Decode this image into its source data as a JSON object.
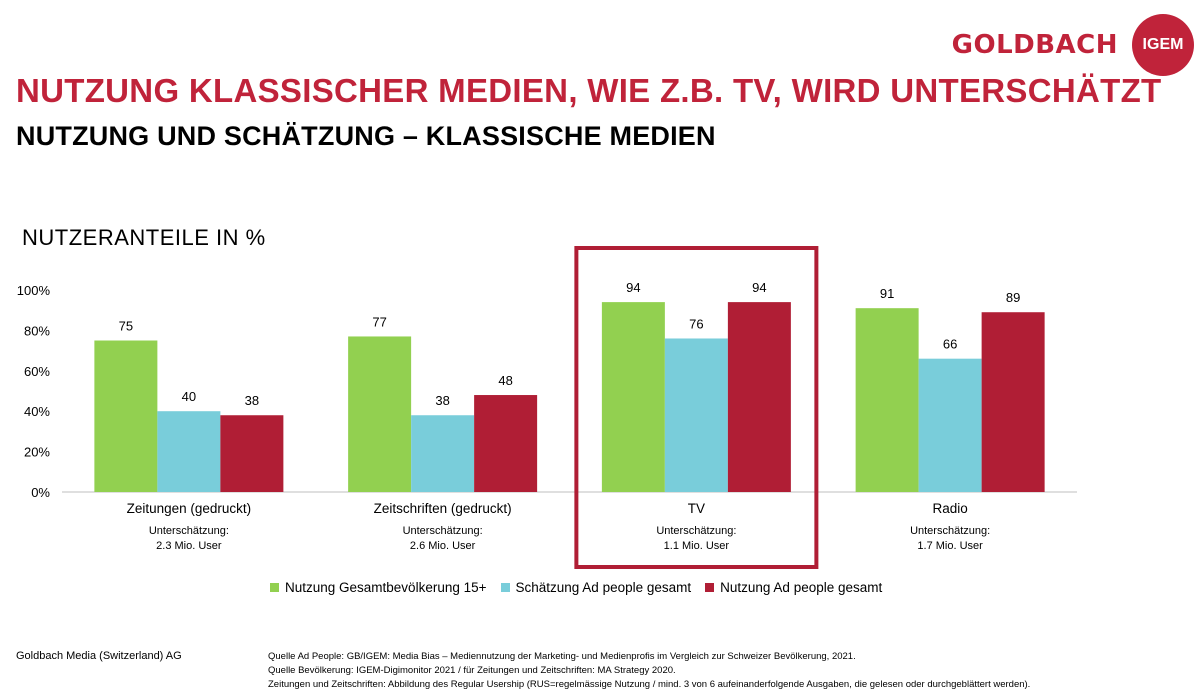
{
  "header": {
    "brand_name": "GOLDBACH",
    "logo_text": "IGEM",
    "title": "NUTZUNG KLASSISCHER MEDIEN, WIE Z.B. TV, WIRD UNTERSCHÄTZT",
    "subtitle": "NUTZUNG UND SCHÄTZUNG – KLASSISCHE MEDIEN"
  },
  "chart_label": "NUTZERANTEILE IN %",
  "chart_data": {
    "type": "bar",
    "categories": [
      "Zeitungen (gedruckt)",
      "Zeitschriften (gedruckt)",
      "TV",
      "Radio"
    ],
    "series": [
      {
        "name": "Nutzung Gesamtbevölkerung 15+",
        "values": [
          75,
          77,
          94,
          91
        ],
        "color": "#92d050"
      },
      {
        "name": "Schätzung Ad people gesamt",
        "values": [
          40,
          38,
          76,
          66
        ],
        "color": "#79cdda"
      },
      {
        "name": "Nutzung Ad people gesamt",
        "values": [
          38,
          48,
          94,
          89
        ],
        "color": "#b01e35"
      }
    ],
    "ylim": [
      0,
      100
    ],
    "yticks": [
      "0%",
      "20%",
      "40%",
      "60%",
      "80%",
      "100%"
    ],
    "annotations": [
      {
        "label": "Unterschätzung:",
        "value": "2.3 Mio. User"
      },
      {
        "label": "Unterschätzung:",
        "value": "2.6 Mio. User"
      },
      {
        "label": "Unterschätzung:",
        "value": "1.1 Mio. User"
      },
      {
        "label": "Unterschätzung:",
        "value": "1.7 Mio. User"
      }
    ],
    "highlight_category": "TV",
    "highlight_color": "#b01e35",
    "grid": false,
    "legend_position": "bottom"
  },
  "footer": {
    "company": "Goldbach Media (Switzerland) AG",
    "sources": [
      "Quelle Ad People: GB/IGEM: Media Bias – Mediennutzung der Marketing- und Medienprofis im Vergleich zur Schweizer Bevölkerung, 2021.",
      "Quelle Bevölkerung: IGEM-Digimonitor 2021 / für Zeitungen und Zeitschriften: MA Strategy 2020.",
      "Zeitungen und Zeitschriften: Abbildung des Regular Usership (RUS=regelmässige Nutzung / mind. 3 von 6 aufeinanderfolgende Ausgaben, die gelesen oder durchgeblättert werden)."
    ]
  }
}
